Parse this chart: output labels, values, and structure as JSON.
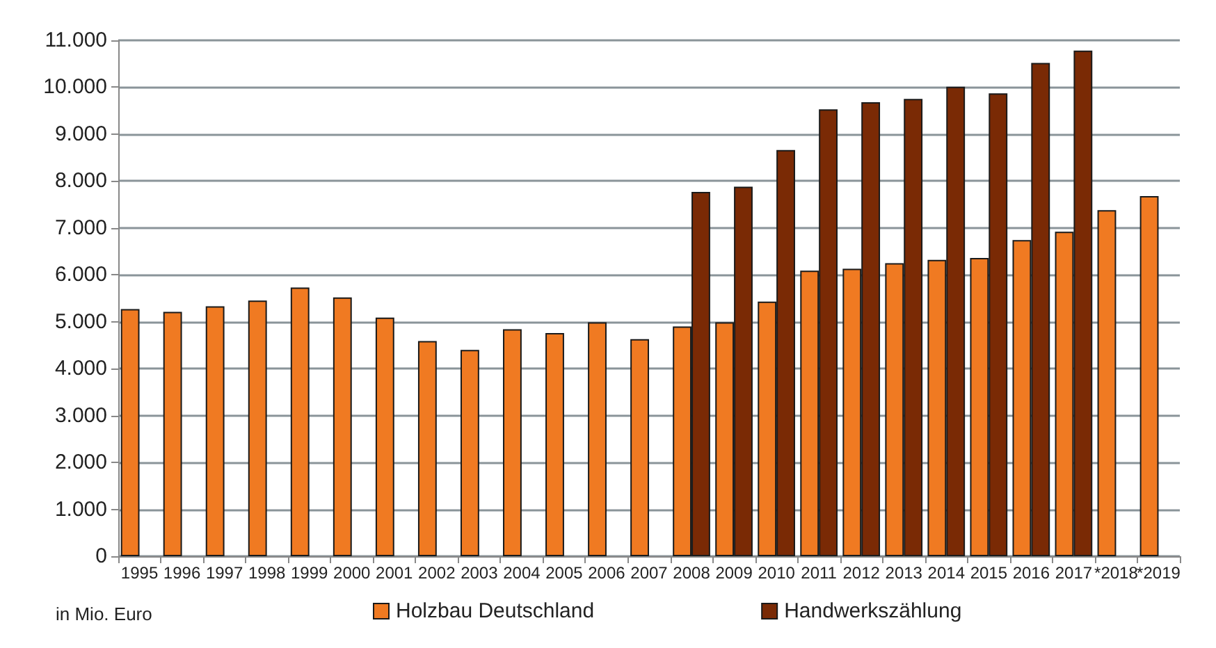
{
  "chart_data": {
    "type": "bar",
    "categories": [
      "1995",
      "1996",
      "1997",
      "1998",
      "1999",
      "2000",
      "2001",
      "2002",
      "2003",
      "2004",
      "2005",
      "2006",
      "2007",
      "2008",
      "2009",
      "2010",
      "2011",
      "2012",
      "2013",
      "2014",
      "2015",
      "2016",
      "2017",
      "*2018",
      "*2019"
    ],
    "series": [
      {
        "name": "Holzbau Deutschland",
        "color": "#f07a22",
        "values": [
          5270,
          5210,
          5330,
          5450,
          5730,
          5520,
          5090,
          4590,
          4400,
          4840,
          4760,
          4990,
          4630,
          4900,
          4990,
          5430,
          6090,
          6130,
          6250,
          6320,
          6360,
          6740,
          6920,
          7380,
          7680
        ]
      },
      {
        "name": "Handwerkszählung",
        "color": "#7a2a05",
        "values": [
          null,
          null,
          null,
          null,
          null,
          null,
          null,
          null,
          null,
          null,
          null,
          null,
          null,
          7770,
          7880,
          8660,
          9530,
          9680,
          9750,
          10010,
          9870,
          10520,
          10780,
          null,
          null
        ]
      }
    ],
    "ylim": [
      0,
      11000
    ],
    "yticks": [
      {
        "value": 0,
        "label": "0"
      },
      {
        "value": 1000,
        "label": "1.000"
      },
      {
        "value": 2000,
        "label": "2.000"
      },
      {
        "value": 3000,
        "label": "3.000"
      },
      {
        "value": 4000,
        "label": "4.000"
      },
      {
        "value": 5000,
        "label": "5.000"
      },
      {
        "value": 6000,
        "label": "6.000"
      },
      {
        "value": 7000,
        "label": "7.000"
      },
      {
        "value": 8000,
        "label": "8.000"
      },
      {
        "value": 9000,
        "label": "9.000"
      },
      {
        "value": 10000,
        "label": "10.000"
      },
      {
        "value": 11000,
        "label": "11.000"
      }
    ],
    "grid": "y",
    "legend": "bottom",
    "annotations": [
      "in Mio. Euro"
    ]
  }
}
